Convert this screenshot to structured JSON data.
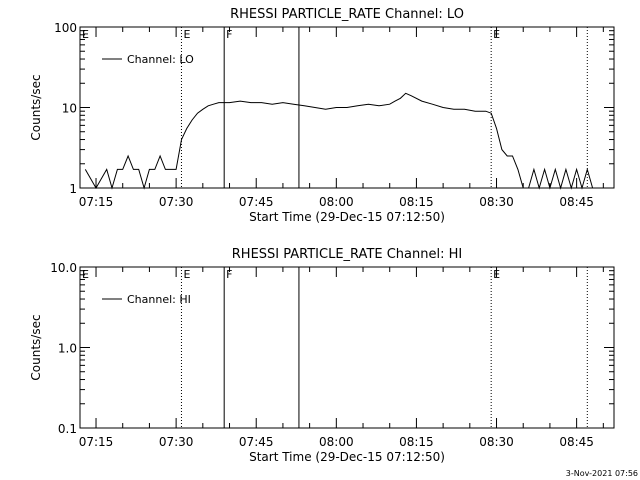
{
  "chart_data": [
    {
      "type": "line",
      "title": "RHESSI PARTICLE_RATE Channel: LO",
      "xlabel": "Start Time (29-Dec-15 07:12:50)",
      "ylabel": "Counts/sec",
      "y_scale": "log",
      "ylim": [
        1,
        100
      ],
      "yticks": [
        "1",
        "10",
        "100"
      ],
      "xlim": [
        "07:12",
        "08:52"
      ],
      "xticks": [
        "07:15",
        "07:30",
        "07:45",
        "08:00",
        "08:15",
        "08:30",
        "08:45"
      ],
      "legend": "top-left",
      "series": [
        {
          "name": "Channel: LO",
          "x": [
            "07:13",
            "07:15",
            "07:17",
            "07:18",
            "07:19",
            "07:20",
            "07:21",
            "07:22",
            "07:23",
            "07:24",
            "07:25",
            "07:26",
            "07:27",
            "07:28",
            "07:29",
            "07:30",
            "07:31",
            "07:32",
            "07:33",
            "07:34",
            "07:35",
            "07:36",
            "07:37",
            "07:38",
            "07:40",
            "07:42",
            "07:44",
            "07:46",
            "07:48",
            "07:50",
            "07:52",
            "07:54",
            "07:56",
            "07:58",
            "08:00",
            "08:02",
            "08:04",
            "08:06",
            "08:08",
            "08:10",
            "08:11",
            "08:12",
            "08:13",
            "08:14",
            "08:16",
            "08:18",
            "08:20",
            "08:22",
            "08:24",
            "08:26",
            "08:28",
            "08:29",
            "08:30",
            "08:31",
            "08:32",
            "08:33",
            "08:34",
            "08:35",
            "08:36",
            "08:37",
            "08:38",
            "08:39",
            "08:40",
            "08:41",
            "08:42",
            "08:43",
            "08:44",
            "08:45",
            "08:46",
            "08:47",
            "08:48"
          ],
          "values": [
            1.7,
            1.0,
            1.7,
            1.0,
            1.7,
            1.7,
            2.5,
            1.7,
            1.7,
            1.0,
            1.7,
            1.7,
            2.5,
            1.7,
            1.7,
            1.7,
            4.0,
            5.5,
            7.0,
            8.5,
            9.5,
            10.5,
            11.0,
            11.5,
            11.5,
            12.0,
            11.5,
            11.5,
            11.0,
            11.5,
            11.0,
            10.5,
            10.0,
            9.5,
            10.0,
            10.0,
            10.5,
            11.0,
            10.5,
            11.0,
            12.0,
            13.0,
            15.0,
            14.0,
            12.0,
            11.0,
            10.0,
            9.5,
            9.5,
            9.0,
            9.0,
            8.5,
            5.5,
            3.0,
            2.5,
            2.5,
            1.7,
            1.0,
            1.0,
            1.7,
            1.0,
            1.7,
            1.0,
            1.7,
            1.0,
            1.7,
            1.0,
            1.7,
            1.0,
            1.7,
            1.0
          ]
        }
      ]
    },
    {
      "type": "line",
      "title": "RHESSI PARTICLE_RATE Channel: HI",
      "xlabel": "Start Time (29-Dec-15 07:12:50)",
      "ylabel": "Counts/sec",
      "y_scale": "log",
      "ylim": [
        0.1,
        10
      ],
      "yticks": [
        "0.1",
        "1.0",
        "10.0"
      ],
      "xlim": [
        "07:12",
        "08:52"
      ],
      "xticks": [
        "07:15",
        "07:30",
        "07:45",
        "08:00",
        "08:15",
        "08:30",
        "08:45"
      ],
      "legend": "top-left",
      "series": [
        {
          "name": "Channel: HI",
          "x": [],
          "values": []
        }
      ]
    }
  ],
  "markers": [
    {
      "time": "07:31",
      "label": "E",
      "style": "dotted"
    },
    {
      "time": "07:39",
      "label": "F",
      "style": "solid"
    },
    {
      "time": "07:53",
      "label": "",
      "style": "solid"
    },
    {
      "time": "08:29",
      "label": "E",
      "style": "dotted"
    },
    {
      "time": "08:47",
      "label": "",
      "style": "dotted"
    }
  ],
  "footer_text": "3-Nov-2021 07:56"
}
